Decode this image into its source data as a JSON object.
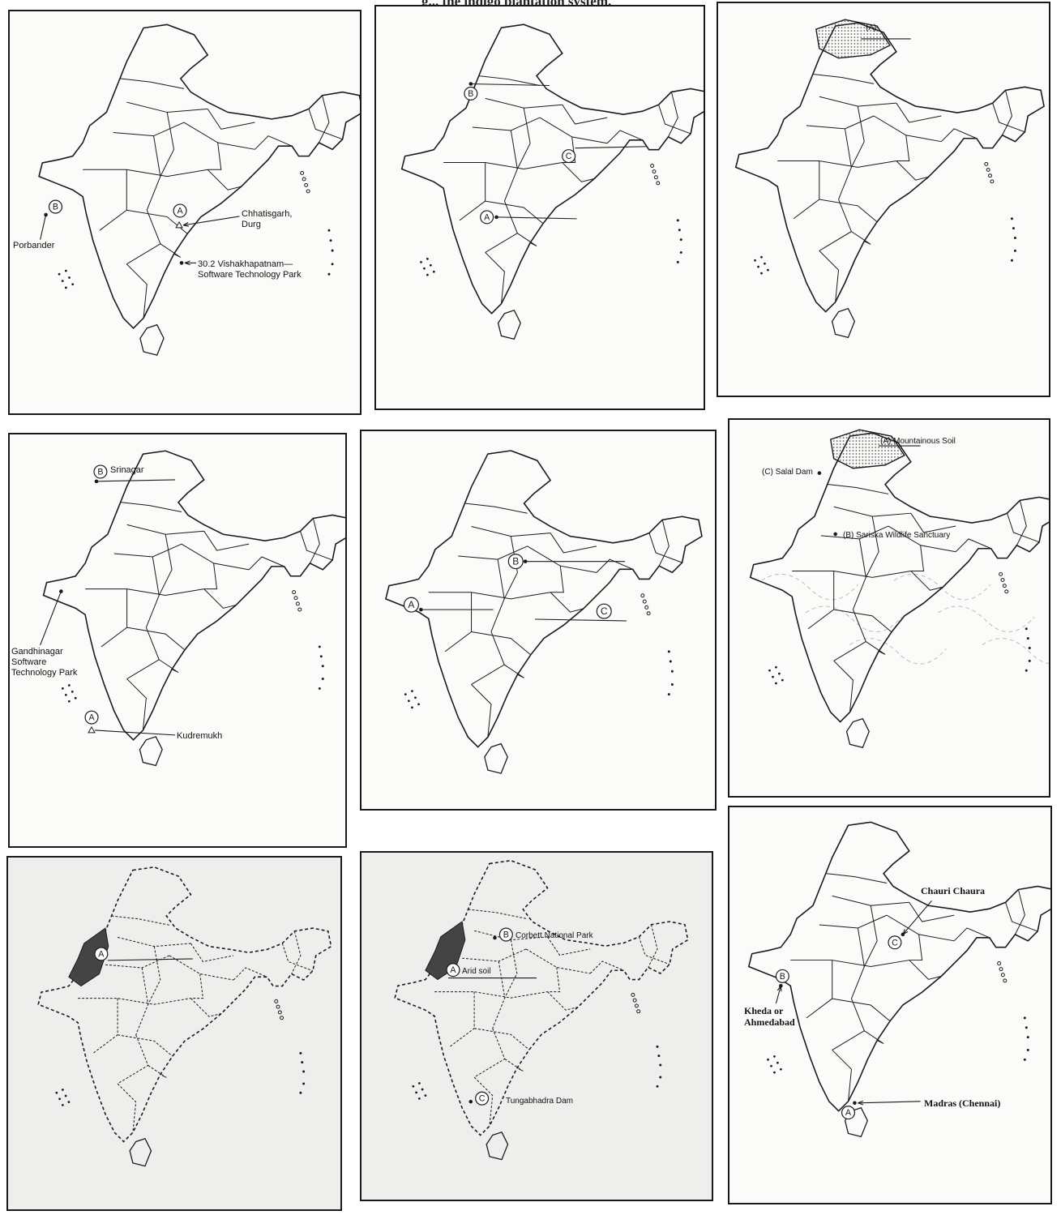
{
  "header_caption": "g... the indigo plantation system.",
  "panels": [
    {
      "id": "p1",
      "labels": {
        "porbander": "Porbander",
        "chhatisgarh": "Chhatisgarh,\nDurg",
        "vishakhapatnam": "30.2 Vishakhapatnam—\nSoftware Technology Park"
      },
      "markers": [
        "A",
        "B"
      ]
    },
    {
      "id": "p2",
      "markers": [
        "A",
        "B",
        "C"
      ]
    },
    {
      "id": "p3",
      "labels": {
        "a": "(A)"
      }
    },
    {
      "id": "p4",
      "labels": {
        "srinagar": "Srinagar",
        "gandhinagar": "Gandhinagar\nSoftware\nTechnology Park",
        "kudremukh": "Kudremukh"
      },
      "markers": [
        "A",
        "B"
      ]
    },
    {
      "id": "p5",
      "markers": [
        "A",
        "B",
        "C"
      ]
    },
    {
      "id": "p6",
      "labels": {
        "mountainous": "(A) Mountainous Soil",
        "salal": "(C) Salal Dam",
        "sariska": "(B) Sariska Wildlife Sanctuary"
      }
    },
    {
      "id": "p7",
      "markers": [
        "A"
      ]
    },
    {
      "id": "p8",
      "labels": {
        "corbett": "Corbett National Park",
        "arid": "Arid soil",
        "tungabhadra": "Tungabhadra Dam"
      },
      "markers": [
        "A",
        "B",
        "C"
      ]
    },
    {
      "id": "p9",
      "labels": {
        "chauri": "Chauri Chaura",
        "kheda": "Kheda or\nAhmedabad",
        "madras": "Madras (Chennai)"
      },
      "markers": [
        "A",
        "B",
        "C"
      ]
    }
  ],
  "colors": {
    "outline": "#1a1a1a",
    "hatch": "#555555",
    "arid_fill": "#444444"
  }
}
